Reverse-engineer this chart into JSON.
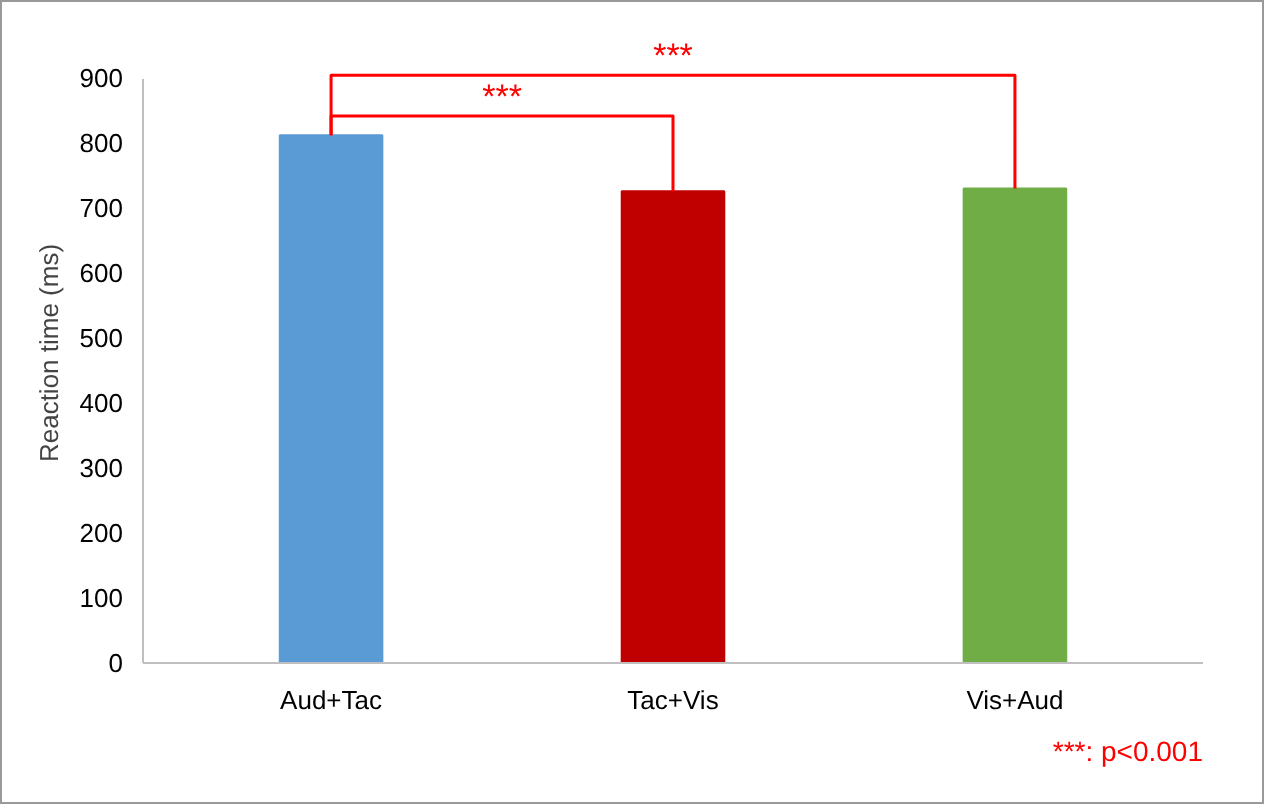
{
  "chart_data": {
    "type": "bar",
    "ylabel": "Reaction time (ms)",
    "categories": [
      "Aud+Tac",
      "Tac+Vis",
      "Vis+Aud"
    ],
    "values": [
      812,
      726,
      730
    ],
    "colors": [
      "#5b9bd5",
      "#c00000",
      "#70ad47"
    ],
    "ylim": [
      0,
      900
    ],
    "yticks": [
      0,
      100,
      200,
      300,
      400,
      500,
      600,
      700,
      800,
      900
    ],
    "grid": false,
    "annotations": [
      "***",
      "***",
      "***: p<0.001"
    ]
  }
}
